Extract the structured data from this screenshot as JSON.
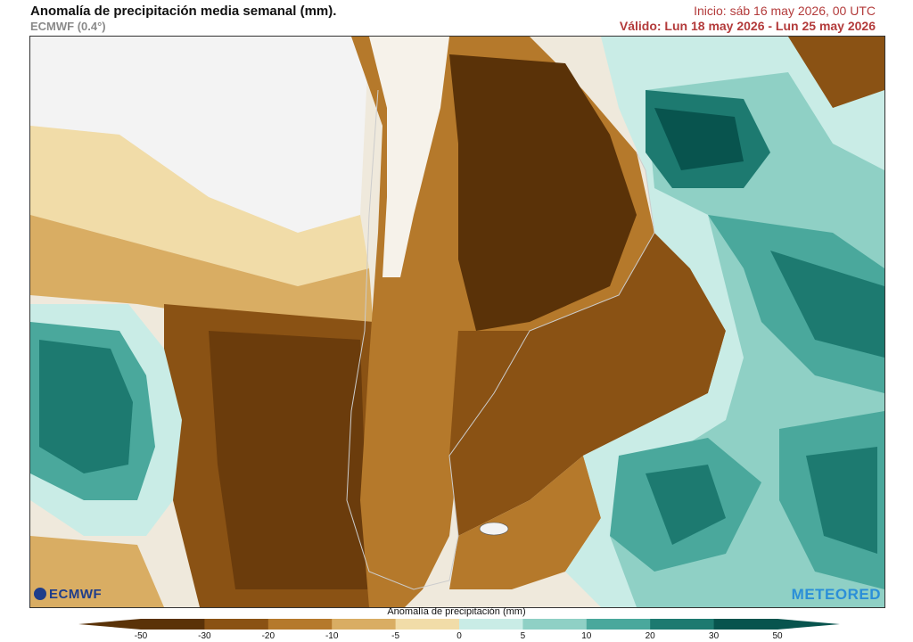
{
  "header": {
    "title": "Anomalía de precipitación media semanal (mm).",
    "subtitle": "ECMWF (0.4°)",
    "init": "Inicio:  sáb 16 may 2026, 00 UTC",
    "valid": "Válido: Lun 18 may 2026 - Lun 25 may 2026"
  },
  "map": {
    "logo_left": "ECMWF",
    "logo_right": "METEORED"
  },
  "legend": {
    "label": "Anomalía de precipitación (mm)",
    "ticks": [
      "-50",
      "-30",
      "-20",
      "-10",
      "-5",
      "0",
      "5",
      "10",
      "20",
      "30",
      "50"
    ],
    "colors": [
      "#5a3208",
      "#8a5214",
      "#b5792b",
      "#d9ad63",
      "#f1dca8",
      "#f4f0e8",
      "#c9ece6",
      "#8fd0c5",
      "#4aa89c",
      "#1d7a70",
      "#08544e"
    ]
  },
  "colors": {
    "dry_strong": "#5a3208",
    "dry": "#8a5214",
    "dry_mid": "#b5792b",
    "dry_light": "#d9ad63",
    "dry_pale": "#f1dca8",
    "neutral": "#f4f0e8",
    "wet_pale": "#c9ece6",
    "wet_light": "#8fd0c5",
    "wet": "#4aa89c",
    "wet_strong": "#1d7a70",
    "wet_very": "#08544e"
  }
}
